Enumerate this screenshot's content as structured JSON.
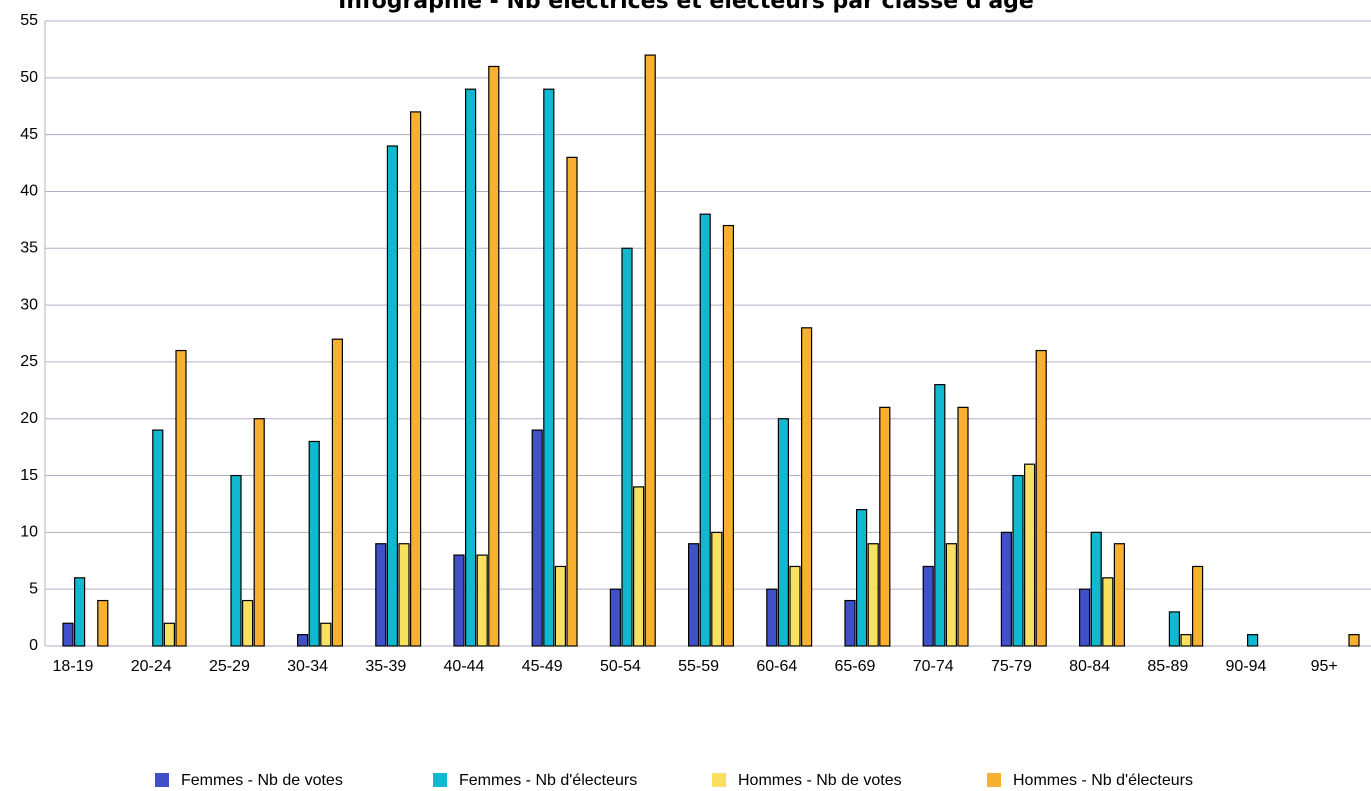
{
  "chart_data": {
    "type": "bar",
    "title": "Infographie - Nb électrices et électeurs par classe d'âge",
    "categories": [
      "18-19",
      "20-24",
      "25-29",
      "30-34",
      "35-39",
      "40-44",
      "45-49",
      "50-54",
      "55-59",
      "60-64",
      "65-69",
      "70-74",
      "75-79",
      "80-84",
      "85-89",
      "90-94",
      "95+"
    ],
    "series": [
      {
        "name": "Femmes - Nb de votes",
        "color": "#4050c8",
        "values": [
          2,
          0,
          0,
          1,
          9,
          8,
          19,
          5,
          9,
          5,
          4,
          7,
          10,
          5,
          0,
          0,
          0
        ]
      },
      {
        "name": "Femmes - Nb d'électeurs",
        "color": "#10b8d0",
        "values": [
          6,
          19,
          15,
          18,
          44,
          49,
          49,
          35,
          38,
          20,
          12,
          23,
          15,
          10,
          3,
          1,
          0
        ]
      },
      {
        "name": "Hommes - Nb de votes",
        "color": "#f8e060",
        "values": [
          0,
          2,
          4,
          2,
          9,
          8,
          7,
          14,
          10,
          7,
          9,
          9,
          16,
          6,
          1,
          0,
          0
        ]
      },
      {
        "name": "Hommes - Nb d'électeurs",
        "color": "#f8b030",
        "values": [
          4,
          26,
          20,
          27,
          47,
          51,
          43,
          52,
          37,
          28,
          21,
          21,
          26,
          9,
          7,
          0,
          1
        ]
      }
    ],
    "ylim": [
      0,
      55
    ],
    "yticks": [
      0,
      5,
      10,
      15,
      20,
      25,
      30,
      35,
      40,
      45,
      50,
      55
    ],
    "grid": true,
    "legend": "bottom"
  }
}
